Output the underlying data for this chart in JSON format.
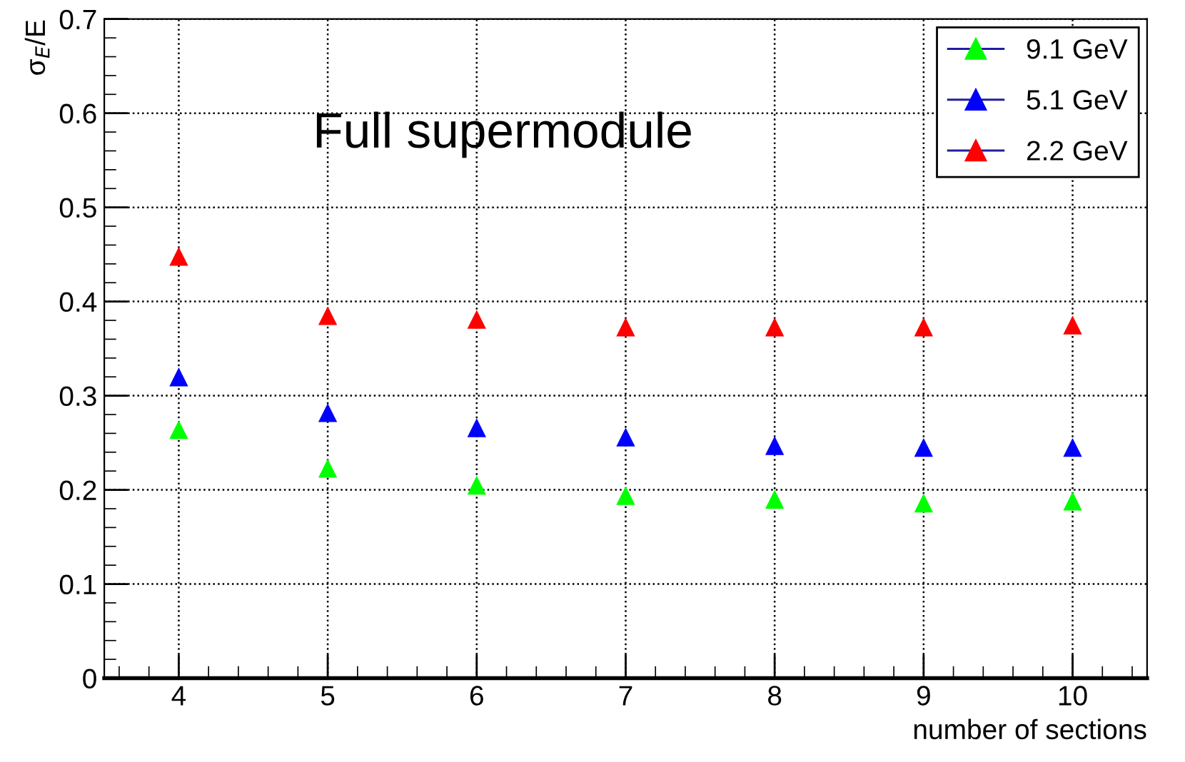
{
  "chart_data": {
    "type": "scatter",
    "xlabel": "number of sections",
    "ylabel": "σ$_{E}$/E",
    "annotations": [
      "Full supermodule"
    ],
    "x": [
      4,
      5,
      6,
      7,
      8,
      9,
      10
    ],
    "series": [
      {
        "name": "9.1 GeV",
        "color": "#00ff00",
        "values": [
          0.264,
          0.223,
          0.205,
          0.194,
          0.19,
          0.186,
          0.188
        ]
      },
      {
        "name": "5.1 GeV",
        "color": "#0000ff",
        "values": [
          0.32,
          0.282,
          0.266,
          0.256,
          0.247,
          0.245,
          0.245
        ]
      },
      {
        "name": "2.2 GeV",
        "color": "#ff0000",
        "values": [
          0.448,
          0.385,
          0.381,
          0.373,
          0.373,
          0.373,
          0.375
        ]
      }
    ],
    "xlim": [
      3.5,
      10.5
    ],
    "xticks": [
      4,
      5,
      6,
      7,
      8,
      9,
      10
    ],
    "ylim": [
      0,
      0.7
    ],
    "yticks": [
      0,
      0.1,
      0.2,
      0.3,
      0.4,
      0.5,
      0.6,
      0.7
    ],
    "grid": true,
    "legend": "top right",
    "marker": "triangle"
  }
}
